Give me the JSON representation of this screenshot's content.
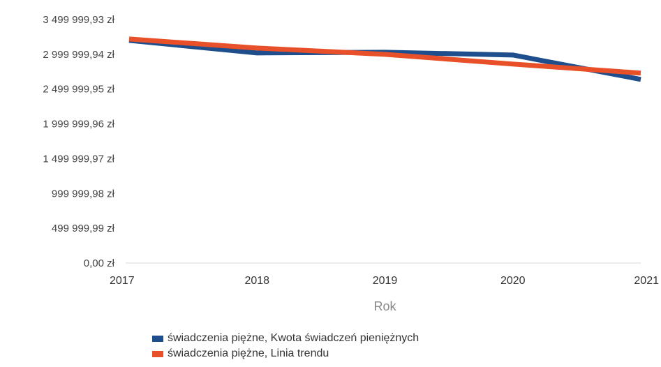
{
  "chart_data": {
    "type": "line",
    "title": "",
    "xlabel": "Rok",
    "ylabel": "",
    "x": [
      "2017",
      "2018",
      "2019",
      "2020",
      "2021"
    ],
    "ylim": [
      0.0,
      3499999.93
    ],
    "yticks": [
      0.0,
      499999.99,
      999999.98,
      1499999.97,
      1999999.96,
      2499999.95,
      2999999.94,
      3499999.93
    ],
    "ytick_labels": [
      "0,00 zł",
      "499 999,99 zł",
      "999 999,98 zł",
      "1 499 999,97 zł",
      "1 999 999,96 zł",
      "2 499 999,95 zł",
      "2 999 999,94 zł",
      "3 499 999,93 zł"
    ],
    "grid": false,
    "legend_position": "bottom",
    "series": [
      {
        "name": "świadczenia piężne, Kwota świadczeń pieniężnych",
        "color": "#1f4e8c",
        "values": [
          3200000,
          3020000,
          3030000,
          2990000,
          2640000
        ]
      },
      {
        "name": "świadczenia piężne, Linia trendu",
        "color": "#e8502a",
        "values": [
          3220000,
          3090000,
          3000000,
          2860000,
          2730000
        ]
      }
    ]
  }
}
